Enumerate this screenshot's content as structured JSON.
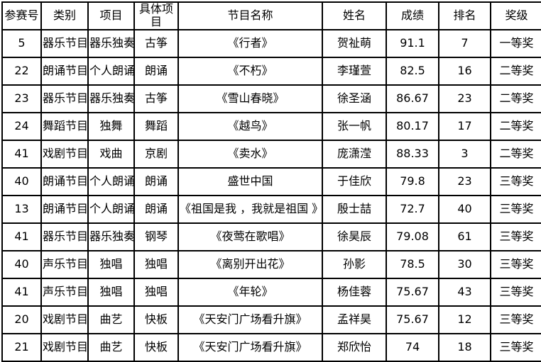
{
  "table": {
    "columns": [
      "参赛号",
      "类别",
      "项目",
      "具体项目",
      "节目名称",
      "姓名",
      "成绩",
      "排名",
      "奖级"
    ],
    "rows": [
      [
        "5",
        "器乐节目",
        "器乐独奏",
        "古筝",
        "《行者》",
        "贺祉萌",
        "91.1",
        "7",
        "一等奖"
      ],
      [
        "22",
        "朗诵节目",
        "个人朗诵",
        "朗诵",
        "《不朽》",
        "李瑾萱",
        "82.5",
        "16",
        "二等奖"
      ],
      [
        "23",
        "器乐节目",
        "器乐独奏",
        "古筝",
        "《雪山春晓》",
        "徐圣涵",
        "86.67",
        "23",
        "二等奖"
      ],
      [
        "24",
        "舞蹈节目",
        "独舞",
        "舞蹈",
        "《越鸟》",
        "张一帆",
        "80.17",
        "17",
        "二等奖"
      ],
      [
        "41",
        "戏剧节目",
        "戏曲",
        "京剧",
        "《卖水》",
        "庞潇滢",
        "88.33",
        "3",
        "二等奖"
      ],
      [
        "40",
        "朗诵节目",
        "个人朗诵",
        "朗诵",
        "盛世中国",
        "于佳欣",
        "79.8",
        "23",
        "三等奖"
      ],
      [
        "13",
        "朗诵节目",
        "个人朗诵",
        "朗诵",
        "《祖国是我 ，我就是祖国 》",
        "殷士喆",
        "72.7",
        "40",
        "三等奖"
      ],
      [
        "41",
        "器乐节目",
        "器乐独奏",
        "钢琴",
        "《夜莺在歌唱》",
        "徐昊辰",
        "79.08",
        "61",
        "三等奖"
      ],
      [
        "40",
        "声乐节目",
        "独唱",
        "独唱",
        "《离别开出花》",
        "孙影",
        "78.5",
        "30",
        "三等奖"
      ],
      [
        "41",
        "声乐节目",
        "独唱",
        "独唱",
        "《年轮》",
        "杨佳蓉",
        "75.67",
        "43",
        "三等奖"
      ],
      [
        "20",
        "戏剧节目",
        "曲艺",
        "快板",
        "《天安门广场看升旗》",
        "孟祥昊",
        "75.67",
        "12",
        "三等奖"
      ],
      [
        "21",
        "戏剧节目",
        "曲艺",
        "快板",
        "《天安门广场看升旗》",
        "郑欣怡",
        "74",
        "18",
        "三等奖"
      ]
    ],
    "border_color": "#000000",
    "background_color": "#ffffff",
    "text_color": "#000000"
  }
}
